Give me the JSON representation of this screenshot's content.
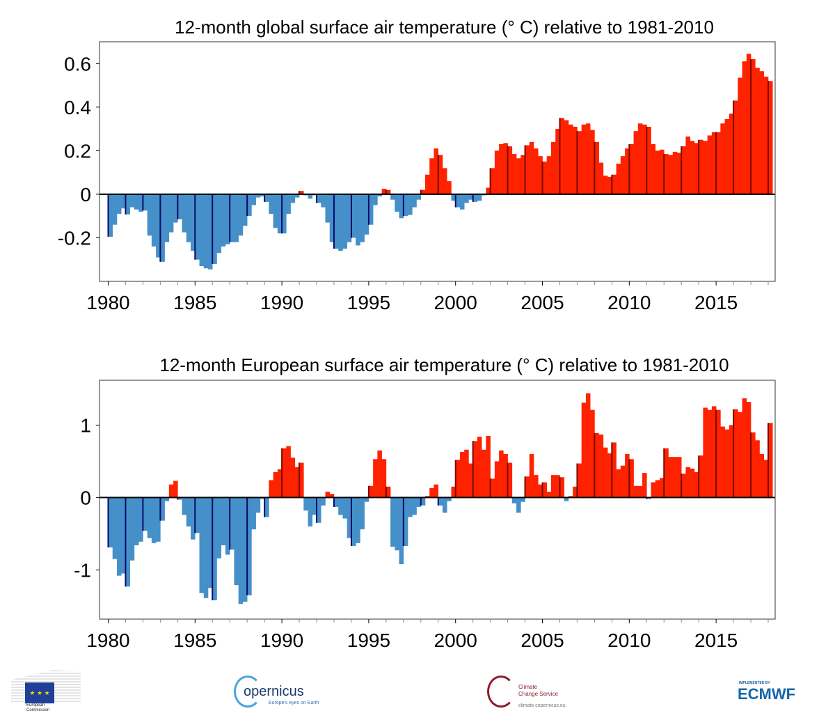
{
  "colors": {
    "warm": "#ff2200",
    "cold": "#4590c8",
    "warm_year_marker": "#7a0a00",
    "cold_year_marker": "#0a0a6e",
    "axis": "#000000"
  },
  "chart_data": [
    {
      "type": "bar",
      "title": "12-month global surface air temperature (° C) relative to 1981-2010",
      "xlabel": "",
      "ylabel": "",
      "x_start": 1980.0,
      "x_step": 0.25,
      "xlim": [
        1979.5,
        2018.4
      ],
      "ylim": [
        -0.4,
        0.7
      ],
      "x_ticks": [
        "1980",
        "1985",
        "1990",
        "1995",
        "2000",
        "2005",
        "2010",
        "2015"
      ],
      "y_ticks": [
        "0.6",
        "0.4",
        "0.2",
        "0",
        "-0.2"
      ],
      "y_tick_values": [
        0.6,
        0.4,
        0.2,
        0,
        -0.2
      ],
      "grid": false,
      "values": [
        -0.195,
        -0.14,
        -0.09,
        -0.065,
        -0.093,
        -0.06,
        -0.07,
        -0.08,
        -0.075,
        -0.19,
        -0.24,
        -0.29,
        -0.31,
        -0.22,
        -0.175,
        -0.13,
        -0.115,
        -0.175,
        -0.22,
        -0.26,
        -0.3,
        -0.33,
        -0.34,
        -0.345,
        -0.32,
        -0.27,
        -0.24,
        -0.23,
        -0.22,
        -0.22,
        -0.19,
        -0.145,
        -0.1,
        -0.05,
        -0.015,
        -0.01,
        -0.035,
        -0.09,
        -0.155,
        -0.18,
        -0.18,
        -0.09,
        -0.04,
        -0.015,
        0.015,
        -0.005,
        -0.02,
        -0.005,
        -0.04,
        -0.06,
        -0.13,
        -0.22,
        -0.25,
        -0.26,
        -0.25,
        -0.22,
        -0.2,
        -0.235,
        -0.22,
        -0.185,
        -0.14,
        -0.05,
        -0.01,
        0.025,
        0.02,
        -0.025,
        -0.08,
        -0.11,
        -0.1,
        -0.095,
        -0.06,
        -0.025,
        0.02,
        0.09,
        0.165,
        0.21,
        0.18,
        0.12,
        0.06,
        -0.03,
        -0.06,
        -0.07,
        -0.04,
        -0.025,
        -0.035,
        -0.03,
        -0.005,
        0.03,
        0.12,
        0.2,
        0.23,
        0.235,
        0.22,
        0.185,
        0.165,
        0.18,
        0.225,
        0.24,
        0.21,
        0.175,
        0.15,
        0.175,
        0.24,
        0.3,
        0.35,
        0.34,
        0.32,
        0.31,
        0.29,
        0.32,
        0.325,
        0.295,
        0.24,
        0.145,
        0.085,
        0.08,
        0.09,
        0.14,
        0.175,
        0.21,
        0.23,
        0.29,
        0.325,
        0.32,
        0.31,
        0.23,
        0.2,
        0.205,
        0.185,
        0.18,
        0.195,
        0.19,
        0.22,
        0.265,
        0.245,
        0.235,
        0.25,
        0.245,
        0.27,
        0.285,
        0.285,
        0.325,
        0.345,
        0.37,
        0.43,
        0.535,
        0.61,
        0.645,
        0.62,
        0.58,
        0.565,
        0.54,
        0.52
      ]
    },
    {
      "type": "bar",
      "title": "12-month European surface air temperature (° C) relative to 1981-2010",
      "xlabel": "",
      "ylabel": "",
      "x_start": 1980.0,
      "x_step": 0.25,
      "xlim": [
        1979.5,
        2018.4
      ],
      "ylim": [
        -1.68,
        1.62
      ],
      "x_ticks": [
        "1980",
        "1985",
        "1990",
        "1995",
        "2000",
        "2005",
        "2010",
        "2015"
      ],
      "y_ticks": [
        "1",
        "0",
        "-1"
      ],
      "y_tick_values": [
        1,
        0,
        -1
      ],
      "grid": false,
      "values": [
        -0.69,
        -0.85,
        -1.08,
        -1.05,
        -1.23,
        -0.87,
        -0.66,
        -0.61,
        -0.46,
        -0.56,
        -0.63,
        -0.61,
        -0.32,
        -0.05,
        0.18,
        0.23,
        -0.03,
        -0.24,
        -0.4,
        -0.58,
        -0.49,
        -1.32,
        -1.39,
        -1.25,
        -1.42,
        -0.84,
        -0.66,
        -0.79,
        -0.72,
        -1.21,
        -1.47,
        -1.44,
        -1.35,
        -0.44,
        -0.21,
        -0.02,
        -0.27,
        0.24,
        0.35,
        0.39,
        0.68,
        0.71,
        0.55,
        0.42,
        0.48,
        -0.18,
        -0.4,
        -0.24,
        -0.35,
        -0.11,
        0.08,
        0.05,
        -0.13,
        -0.24,
        -0.29,
        -0.56,
        -0.67,
        -0.63,
        -0.44,
        -0.06,
        0.16,
        0.53,
        0.65,
        0.53,
        0.15,
        -0.68,
        -0.73,
        -0.92,
        -0.67,
        -0.27,
        -0.24,
        -0.13,
        -0.11,
        0.02,
        0.13,
        0.18,
        -0.11,
        -0.21,
        -0.05,
        0.15,
        0.52,
        0.63,
        0.66,
        0.47,
        0.78,
        0.84,
        0.66,
        0.85,
        0.26,
        0.5,
        0.65,
        0.6,
        0.48,
        -0.08,
        -0.21,
        -0.06,
        0.29,
        0.6,
        0.31,
        0.18,
        0.21,
        0.08,
        0.31,
        0.31,
        0.28,
        -0.05,
        0.02,
        0.15,
        0.47,
        1.31,
        1.44,
        1.21,
        0.89,
        0.87,
        0.69,
        0.61,
        0.76,
        0.39,
        0.44,
        0.6,
        0.53,
        0.16,
        0.16,
        0.34,
        -0.02,
        0.21,
        0.24,
        0.27,
        0.68,
        0.56,
        0.56,
        0.56,
        0.33,
        0.42,
        0.4,
        0.35,
        0.58,
        1.24,
        1.21,
        1.26,
        1.21,
        0.98,
        0.94,
        1.0,
        1.22,
        1.18,
        1.37,
        1.32,
        0.9,
        0.79,
        0.6,
        0.52,
        1.03
      ]
    }
  ],
  "footer": {
    "ec": {
      "line1": "European",
      "line2": "Commission"
    },
    "copernicus": {
      "name": "opernicus",
      "tagline": "Europe's eyes on Earth"
    },
    "c3s": {
      "line1": "Climate",
      "line2": "Change Service",
      "url": "climate.copernicus.eu"
    },
    "ecmwf": {
      "implemented": "IMPLEMENTED BY",
      "name": "ECMWF"
    }
  }
}
